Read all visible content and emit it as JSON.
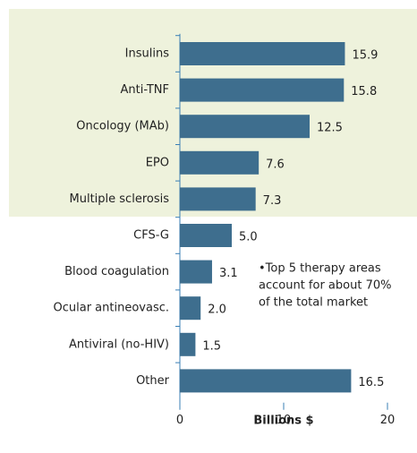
{
  "chart_data": {
    "type": "barh",
    "categories": [
      "Insulins",
      "Anti-TNF",
      "Oncology (MAb)",
      "EPO",
      "Multiple sclerosis",
      "CFS-G",
      "Blood coagulation",
      "Ocular antineovasc.",
      "Antiviral (no-HIV)",
      "Other"
    ],
    "values": [
      15.9,
      15.8,
      12.5,
      7.6,
      7.3,
      5.0,
      3.1,
      2.0,
      1.5,
      16.5
    ],
    "value_labels": [
      "15.9",
      "15.8",
      "12.5",
      "7.6",
      "7.3",
      "5.0",
      "3.1",
      "2.0",
      "1.5",
      "16.5"
    ],
    "color": "#3e6e8e",
    "xlim": [
      0,
      20
    ],
    "xticks": [
      0,
      10,
      20
    ],
    "xlabel": "Billions $",
    "annotation": [
      "•Top 5 therapy areas",
      "account for about 70%",
      "of the total market"
    ]
  }
}
